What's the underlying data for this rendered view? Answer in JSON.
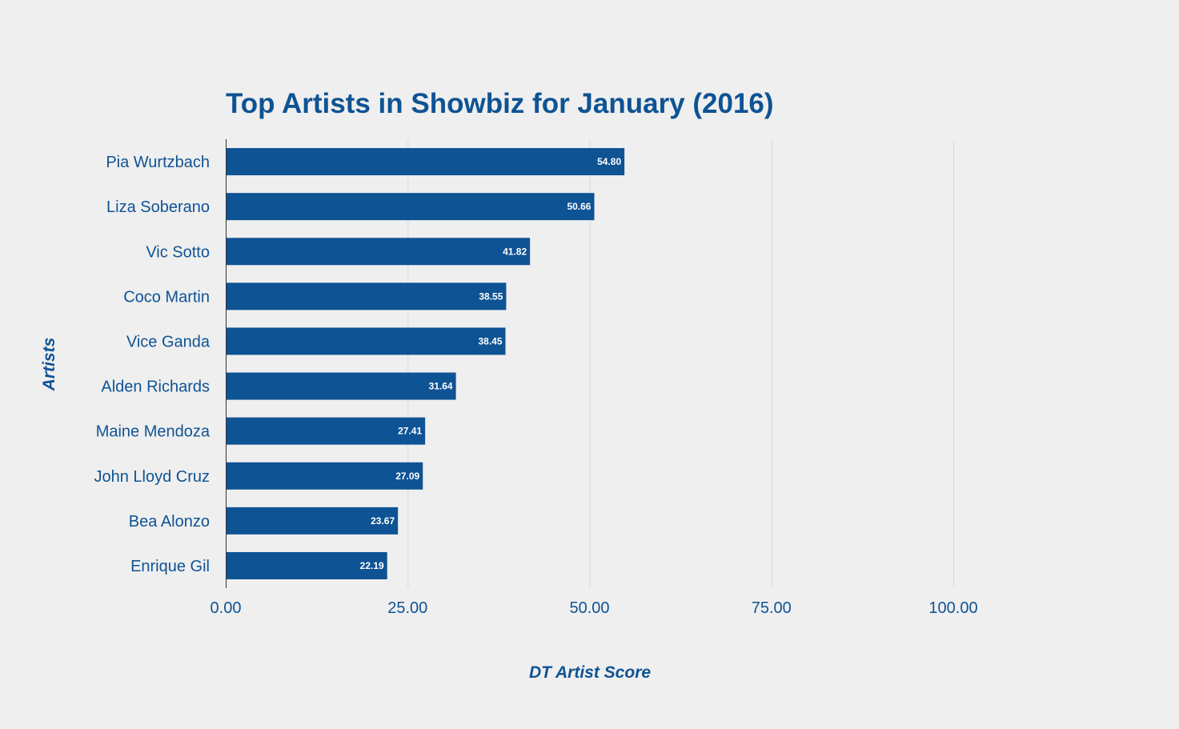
{
  "chart_data": {
    "type": "bar",
    "orientation": "horizontal",
    "title": "Top Artists in Showbiz for January (2016)",
    "xlabel": "DT Artist Score",
    "ylabel": "Artists",
    "categories": [
      "Pia Wurtzbach",
      "Liza Soberano",
      "Vic Sotto",
      "Coco Martin",
      "Vice Ganda",
      "Alden Richards",
      "Maine Mendoza",
      "John Lloyd Cruz",
      "Bea Alonzo",
      "Enrique Gil"
    ],
    "values": [
      54.8,
      50.66,
      41.82,
      38.55,
      38.45,
      31.64,
      27.41,
      27.09,
      23.67,
      22.19
    ],
    "data_labels": [
      "54.80",
      "50.66",
      "41.82",
      "38.55",
      "38.45",
      "31.64",
      "27.41",
      "27.09",
      "23.67",
      "22.19"
    ],
    "xticks": [
      "0.00",
      "25.00",
      "50.00",
      "75.00",
      "100.00"
    ],
    "xtick_values": [
      0,
      25,
      50,
      75,
      100
    ],
    "xlim": [
      0,
      125
    ],
    "grid": true,
    "legend": "none",
    "colors": {
      "bar": "#0e5394",
      "text": "#0e5394",
      "data_label": "#ffffff",
      "grid": "#cfdceb",
      "background": "#efefef"
    }
  }
}
